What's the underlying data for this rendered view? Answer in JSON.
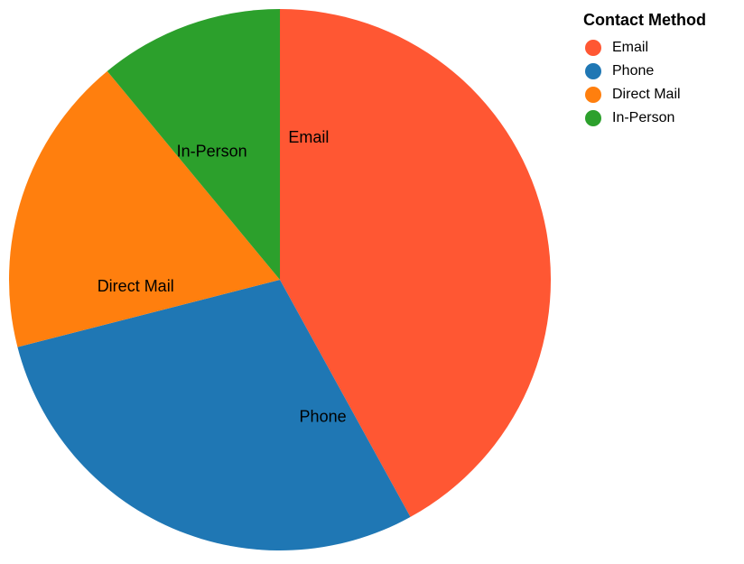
{
  "chart_data": {
    "type": "pie",
    "legend_title": "Contact Method",
    "legend_position": "top-right",
    "categories": [
      "Email",
      "Phone",
      "Direct Mail",
      "In-Person"
    ],
    "values": [
      42,
      29,
      18,
      11
    ],
    "colors": [
      "#ff5733",
      "#1f77b4",
      "#ff7f0e",
      "#2ca02c"
    ],
    "start_angle_deg": 0,
    "direction": "clockwise"
  }
}
